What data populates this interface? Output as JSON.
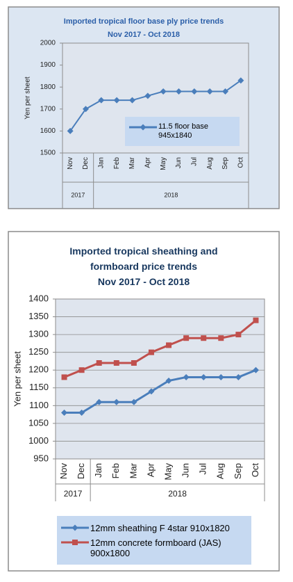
{
  "chart_data": [
    {
      "type": "line",
      "title": "Imported tropical floor base ply price trends",
      "subtitle": "Nov 2017 - Oct 2018",
      "y_label": "Yen per sheet",
      "categories": [
        "Nov",
        "Dec",
        "Jan",
        "Feb",
        "Mar",
        "Apr",
        "May",
        "Jun",
        "Jul",
        "Aug",
        "Sep",
        "Oct"
      ],
      "category_groups": [
        {
          "label": "2017",
          "span": 2
        },
        {
          "label": "2018",
          "span": 10
        }
      ],
      "series": [
        {
          "name": "11.5 floor base 945x1840",
          "color": "#4a7ebb",
          "marker": "diamond",
          "values": [
            1600,
            1700,
            1740,
            1740,
            1740,
            1760,
            1780,
            1780,
            1780,
            1780,
            1780,
            1830
          ]
        }
      ],
      "ylim": [
        1500,
        2000
      ],
      "yticks": [
        1500,
        1600,
        1700,
        1800,
        1900,
        2000
      ],
      "grid": false,
      "legend": "inside-right"
    },
    {
      "type": "line",
      "title": "Imported tropical sheathing and formboard price trends",
      "subtitle": "Nov 2017 - Oct 2018",
      "y_label": "Yen per sheet",
      "categories": [
        "Nov",
        "Dec",
        "Jan",
        "Feb",
        "Mar",
        "Apr",
        "May",
        "Jun",
        "Jul",
        "Aug",
        "Sep",
        "Oct"
      ],
      "category_groups": [
        {
          "label": "2017",
          "span": 2
        },
        {
          "label": "2018",
          "span": 10
        }
      ],
      "series": [
        {
          "name": "12mm sheathing F 4star 910x1820",
          "color": "#4a7ebb",
          "marker": "diamond",
          "values": [
            1080,
            1080,
            1110,
            1110,
            1110,
            1140,
            1170,
            1180,
            1180,
            1180,
            1180,
            1200
          ]
        },
        {
          "name": "12mm concrete formboard (JAS) 900x1800",
          "color": "#c0504d",
          "marker": "square",
          "values": [
            1180,
            1200,
            1220,
            1220,
            1220,
            1250,
            1270,
            1290,
            1290,
            1290,
            1300,
            1340
          ]
        }
      ],
      "ylim": [
        950,
        1400
      ],
      "yticks": [
        950,
        1000,
        1050,
        1100,
        1150,
        1200,
        1250,
        1300,
        1350,
        1400
      ],
      "grid": true,
      "legend": "bottom"
    }
  ]
}
